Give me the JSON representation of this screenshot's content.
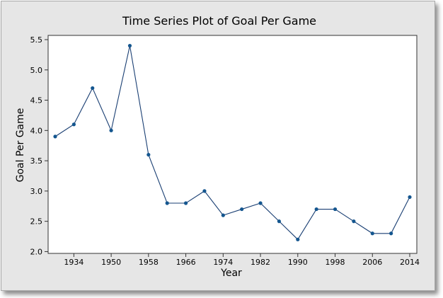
{
  "chart_data": {
    "type": "line",
    "title": "Time Series Plot of Goal Per Game",
    "xlabel": "Year",
    "ylabel": "Goal Per Game",
    "x": [
      1930,
      1934,
      1938,
      1950,
      1954,
      1958,
      1962,
      1966,
      1970,
      1974,
      1978,
      1982,
      1986,
      1990,
      1994,
      1998,
      2002,
      2006,
      2010,
      2014
    ],
    "values": [
      3.9,
      4.1,
      4.7,
      4.0,
      5.4,
      3.6,
      2.8,
      2.8,
      3.0,
      2.6,
      2.7,
      2.8,
      2.5,
      2.2,
      2.7,
      2.7,
      2.5,
      2.3,
      2.3,
      2.9
    ],
    "x_tick_labels": [
      "1934",
      "1950",
      "1958",
      "1966",
      "1974",
      "1982",
      "1990",
      "1998",
      "2006",
      "2014"
    ],
    "x_tick_indices": [
      1,
      3,
      5,
      7,
      9,
      11,
      13,
      15,
      17,
      19
    ],
    "y_ticks": [
      "2.0",
      "2.5",
      "3.0",
      "3.5",
      "4.0",
      "4.5",
      "5.0",
      "5.5"
    ],
    "ylim": [
      1.97,
      5.57
    ],
    "grid": false,
    "line_color": "#1a3f73",
    "marker_color": "#14568f",
    "plot_background": "#ffffff",
    "figure_background": "#e6e6e6"
  }
}
